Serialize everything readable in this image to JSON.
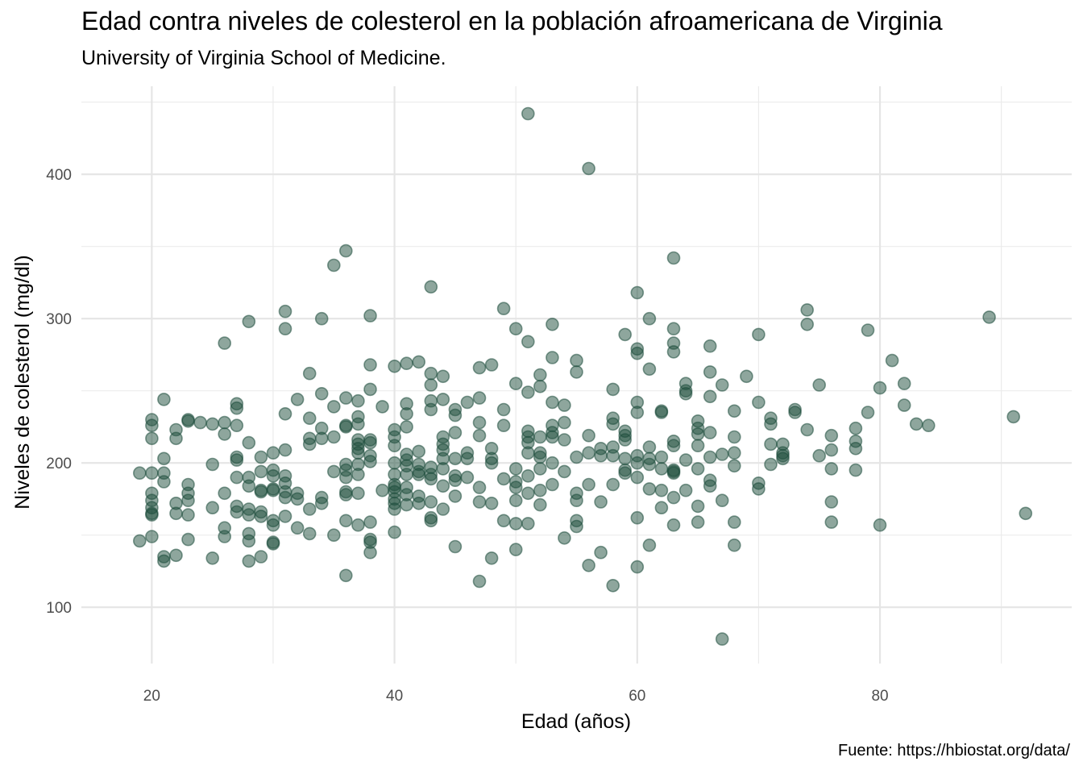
{
  "chart_data": {
    "type": "scatter",
    "title": "Edad contra niveles de colesterol en la población afroamericana de Virginia",
    "subtitle": "University of Virginia School of Medicine.",
    "caption": "Fuente: https://hbiostat.org/data/",
    "xlabel": "Edad (años)",
    "ylabel": "Niveles de colesterol (mg/dl)",
    "xlim": [
      14.2,
      95.8
    ],
    "ylim": [
      61,
      461
    ],
    "x_ticks": [
      20,
      40,
      60,
      80
    ],
    "x_minor": [
      30,
      50,
      70,
      90
    ],
    "y_ticks": [
      100,
      200,
      300,
      400
    ],
    "y_minor": [
      150,
      250,
      350,
      450
    ],
    "grid": true,
    "legend": "none",
    "point_color": "#1e4d3c",
    "point_opacity": 0.5,
    "points": [
      [
        19,
        193
      ],
      [
        19,
        146
      ],
      [
        20,
        230
      ],
      [
        20,
        226
      ],
      [
        20,
        217
      ],
      [
        20,
        193
      ],
      [
        20,
        179
      ],
      [
        20,
        174
      ],
      [
        20,
        169
      ],
      [
        20,
        165
      ],
      [
        20,
        164
      ],
      [
        20,
        149
      ],
      [
        21,
        244
      ],
      [
        21,
        203
      ],
      [
        21,
        193
      ],
      [
        21,
        187
      ],
      [
        21,
        135
      ],
      [
        21,
        132
      ],
      [
        22,
        223
      ],
      [
        22,
        217
      ],
      [
        22,
        172
      ],
      [
        22,
        165
      ],
      [
        22,
        136
      ],
      [
        23,
        230
      ],
      [
        23,
        229
      ],
      [
        23,
        185
      ],
      [
        23,
        179
      ],
      [
        23,
        174
      ],
      [
        23,
        164
      ],
      [
        23,
        147
      ],
      [
        24,
        228
      ],
      [
        25,
        227
      ],
      [
        25,
        199
      ],
      [
        25,
        169
      ],
      [
        25,
        134
      ],
      [
        26,
        283
      ],
      [
        26,
        228
      ],
      [
        26,
        220
      ],
      [
        26,
        179
      ],
      [
        26,
        155
      ],
      [
        26,
        149
      ],
      [
        27,
        241
      ],
      [
        27,
        238
      ],
      [
        27,
        226
      ],
      [
        27,
        204
      ],
      [
        27,
        202
      ],
      [
        27,
        190
      ],
      [
        27,
        170
      ],
      [
        27,
        166
      ],
      [
        28,
        298
      ],
      [
        28,
        214
      ],
      [
        28,
        190
      ],
      [
        28,
        184
      ],
      [
        28,
        168
      ],
      [
        28,
        164
      ],
      [
        28,
        151
      ],
      [
        28,
        146
      ],
      [
        28,
        132
      ],
      [
        29,
        204
      ],
      [
        29,
        194
      ],
      [
        29,
        181
      ],
      [
        29,
        180
      ],
      [
        29,
        166
      ],
      [
        29,
        163
      ],
      [
        29,
        135
      ],
      [
        30,
        207
      ],
      [
        30,
        195
      ],
      [
        30,
        191
      ],
      [
        30,
        182
      ],
      [
        30,
        181
      ],
      [
        30,
        160
      ],
      [
        30,
        157
      ],
      [
        30,
        145
      ],
      [
        30,
        144
      ],
      [
        31,
        305
      ],
      [
        31,
        293
      ],
      [
        31,
        234
      ],
      [
        31,
        209
      ],
      [
        31,
        191
      ],
      [
        31,
        186
      ],
      [
        31,
        180
      ],
      [
        31,
        176
      ],
      [
        31,
        163
      ],
      [
        32,
        244
      ],
      [
        32,
        179
      ],
      [
        32,
        175
      ],
      [
        32,
        155
      ],
      [
        33,
        262
      ],
      [
        33,
        231
      ],
      [
        33,
        217
      ],
      [
        33,
        213
      ],
      [
        33,
        168
      ],
      [
        33,
        151
      ],
      [
        34,
        300
      ],
      [
        34,
        248
      ],
      [
        34,
        224
      ],
      [
        34,
        217
      ],
      [
        34,
        176
      ],
      [
        34,
        172
      ],
      [
        35,
        337
      ],
      [
        35,
        239
      ],
      [
        35,
        218
      ],
      [
        35,
        194
      ],
      [
        35,
        150
      ],
      [
        36,
        347
      ],
      [
        36,
        245
      ],
      [
        36,
        226
      ],
      [
        36,
        225
      ],
      [
        36,
        199
      ],
      [
        36,
        195
      ],
      [
        36,
        190
      ],
      [
        36,
        180
      ],
      [
        36,
        178
      ],
      [
        36,
        160
      ],
      [
        36,
        122
      ],
      [
        37,
        243
      ],
      [
        37,
        232
      ],
      [
        37,
        227
      ],
      [
        37,
        216
      ],
      [
        37,
        213
      ],
      [
        37,
        210
      ],
      [
        37,
        207
      ],
      [
        37,
        199
      ],
      [
        37,
        192
      ],
      [
        37,
        179
      ],
      [
        37,
        157
      ],
      [
        38,
        302
      ],
      [
        38,
        268
      ],
      [
        38,
        251
      ],
      [
        38,
        216
      ],
      [
        38,
        214
      ],
      [
        38,
        205
      ],
      [
        38,
        201
      ],
      [
        38,
        159
      ],
      [
        38,
        147
      ],
      [
        38,
        145
      ],
      [
        38,
        138
      ],
      [
        39,
        239
      ],
      [
        39,
        181
      ],
      [
        40,
        267
      ],
      [
        40,
        223
      ],
      [
        40,
        218
      ],
      [
        40,
        212
      ],
      [
        40,
        200
      ],
      [
        40,
        192
      ],
      [
        40,
        185
      ],
      [
        40,
        183
      ],
      [
        40,
        180
      ],
      [
        40,
        175
      ],
      [
        40,
        172
      ],
      [
        40,
        168
      ],
      [
        40,
        152
      ],
      [
        41,
        269
      ],
      [
        41,
        241
      ],
      [
        41,
        234
      ],
      [
        41,
        225
      ],
      [
        41,
        206
      ],
      [
        41,
        202
      ],
      [
        41,
        198
      ],
      [
        41,
        192
      ],
      [
        41,
        183
      ],
      [
        41,
        178
      ],
      [
        41,
        171
      ],
      [
        42,
        270
      ],
      [
        42,
        208
      ],
      [
        42,
        199
      ],
      [
        42,
        194
      ],
      [
        42,
        192
      ],
      [
        42,
        177
      ],
      [
        42,
        172
      ],
      [
        43,
        322
      ],
      [
        43,
        262
      ],
      [
        43,
        254
      ],
      [
        43,
        243
      ],
      [
        43,
        237
      ],
      [
        43,
        197
      ],
      [
        43,
        192
      ],
      [
        43,
        189
      ],
      [
        43,
        173
      ],
      [
        43,
        162
      ],
      [
        43,
        160
      ],
      [
        44,
        260
      ],
      [
        44,
        244
      ],
      [
        44,
        218
      ],
      [
        44,
        213
      ],
      [
        44,
        209
      ],
      [
        44,
        203
      ],
      [
        44,
        196
      ],
      [
        44,
        184
      ],
      [
        44,
        168
      ],
      [
        45,
        237
      ],
      [
        45,
        233
      ],
      [
        45,
        221
      ],
      [
        45,
        203
      ],
      [
        45,
        191
      ],
      [
        45,
        188
      ],
      [
        45,
        177
      ],
      [
        45,
        142
      ],
      [
        46,
        242
      ],
      [
        46,
        207
      ],
      [
        46,
        203
      ],
      [
        46,
        190
      ],
      [
        47,
        266
      ],
      [
        47,
        245
      ],
      [
        47,
        228
      ],
      [
        47,
        219
      ],
      [
        47,
        183
      ],
      [
        47,
        173
      ],
      [
        47,
        118
      ],
      [
        48,
        268
      ],
      [
        48,
        210
      ],
      [
        48,
        203
      ],
      [
        48,
        200
      ],
      [
        48,
        172
      ],
      [
        48,
        134
      ],
      [
        49,
        307
      ],
      [
        49,
        237
      ],
      [
        49,
        226
      ],
      [
        49,
        189
      ],
      [
        49,
        160
      ],
      [
        50,
        293
      ],
      [
        50,
        255
      ],
      [
        50,
        196
      ],
      [
        50,
        187
      ],
      [
        50,
        183
      ],
      [
        50,
        174
      ],
      [
        50,
        158
      ],
      [
        50,
        140
      ],
      [
        51,
        442
      ],
      [
        51,
        284
      ],
      [
        51,
        249
      ],
      [
        51,
        222
      ],
      [
        51,
        218
      ],
      [
        51,
        214
      ],
      [
        51,
        207
      ],
      [
        51,
        191
      ],
      [
        51,
        179
      ],
      [
        51,
        158
      ],
      [
        52,
        261
      ],
      [
        52,
        253
      ],
      [
        52,
        218
      ],
      [
        52,
        207
      ],
      [
        52,
        204
      ],
      [
        52,
        196
      ],
      [
        52,
        181
      ],
      [
        52,
        171
      ],
      [
        53,
        296
      ],
      [
        53,
        273
      ],
      [
        53,
        242
      ],
      [
        53,
        226
      ],
      [
        53,
        221
      ],
      [
        53,
        218
      ],
      [
        53,
        200
      ],
      [
        53,
        185
      ],
      [
        54,
        240
      ],
      [
        54,
        228
      ],
      [
        54,
        216
      ],
      [
        54,
        194
      ],
      [
        54,
        148
      ],
      [
        55,
        271
      ],
      [
        55,
        263
      ],
      [
        55,
        204
      ],
      [
        55,
        179
      ],
      [
        55,
        174
      ],
      [
        55,
        160
      ],
      [
        55,
        156
      ],
      [
        56,
        404
      ],
      [
        56,
        219
      ],
      [
        56,
        207
      ],
      [
        56,
        185
      ],
      [
        56,
        129
      ],
      [
        57,
        210
      ],
      [
        57,
        205
      ],
      [
        57,
        173
      ],
      [
        57,
        138
      ],
      [
        58,
        251
      ],
      [
        58,
        231
      ],
      [
        58,
        227
      ],
      [
        58,
        211
      ],
      [
        58,
        205
      ],
      [
        58,
        185
      ],
      [
        58,
        115
      ],
      [
        59,
        289
      ],
      [
        59,
        222
      ],
      [
        59,
        219
      ],
      [
        59,
        216
      ],
      [
        59,
        203
      ],
      [
        59,
        195
      ],
      [
        59,
        193
      ],
      [
        60,
        318
      ],
      [
        60,
        279
      ],
      [
        60,
        276
      ],
      [
        60,
        242
      ],
      [
        60,
        235
      ],
      [
        60,
        205
      ],
      [
        60,
        200
      ],
      [
        60,
        190
      ],
      [
        60,
        162
      ],
      [
        60,
        128
      ],
      [
        61,
        300
      ],
      [
        61,
        265
      ],
      [
        61,
        211
      ],
      [
        61,
        203
      ],
      [
        61,
        199
      ],
      [
        61,
        182
      ],
      [
        61,
        143
      ],
      [
        62,
        236
      ],
      [
        62,
        235
      ],
      [
        62,
        204
      ],
      [
        62,
        196
      ],
      [
        62,
        181
      ],
      [
        62,
        169
      ],
      [
        63,
        342
      ],
      [
        63,
        293
      ],
      [
        63,
        283
      ],
      [
        63,
        277
      ],
      [
        63,
        215
      ],
      [
        63,
        212
      ],
      [
        63,
        195
      ],
      [
        63,
        194
      ],
      [
        63,
        193
      ],
      [
        63,
        176
      ],
      [
        63,
        157
      ],
      [
        64,
        255
      ],
      [
        64,
        250
      ],
      [
        64,
        248
      ],
      [
        64,
        202
      ],
      [
        64,
        181
      ],
      [
        65,
        229
      ],
      [
        65,
        224
      ],
      [
        65,
        220
      ],
      [
        65,
        212
      ],
      [
        65,
        196
      ],
      [
        65,
        170
      ],
      [
        65,
        159
      ],
      [
        66,
        281
      ],
      [
        66,
        263
      ],
      [
        66,
        246
      ],
      [
        66,
        221
      ],
      [
        66,
        204
      ],
      [
        66,
        188
      ],
      [
        66,
        184
      ],
      [
        67,
        254
      ],
      [
        67,
        206
      ],
      [
        67,
        174
      ],
      [
        67,
        78
      ],
      [
        68,
        236
      ],
      [
        68,
        218
      ],
      [
        68,
        207
      ],
      [
        68,
        198
      ],
      [
        68,
        159
      ],
      [
        68,
        143
      ],
      [
        69,
        260
      ],
      [
        70,
        289
      ],
      [
        70,
        242
      ],
      [
        70,
        186
      ],
      [
        70,
        182
      ],
      [
        71,
        231
      ],
      [
        71,
        227
      ],
      [
        71,
        213
      ],
      [
        71,
        199
      ],
      [
        72,
        213
      ],
      [
        72,
        207
      ],
      [
        72,
        205
      ],
      [
        72,
        203
      ],
      [
        73,
        237
      ],
      [
        73,
        235
      ],
      [
        74,
        306
      ],
      [
        74,
        296
      ],
      [
        74,
        223
      ],
      [
        75,
        254
      ],
      [
        75,
        205
      ],
      [
        76,
        219
      ],
      [
        76,
        209
      ],
      [
        76,
        196
      ],
      [
        76,
        173
      ],
      [
        76,
        159
      ],
      [
        78,
        224
      ],
      [
        78,
        215
      ],
      [
        78,
        210
      ],
      [
        78,
        195
      ],
      [
        79,
        292
      ],
      [
        79,
        235
      ],
      [
        80,
        252
      ],
      [
        80,
        157
      ],
      [
        81,
        271
      ],
      [
        82,
        255
      ],
      [
        82,
        240
      ],
      [
        83,
        227
      ],
      [
        84,
        226
      ],
      [
        89,
        301
      ],
      [
        91,
        232
      ],
      [
        92,
        165
      ]
    ]
  }
}
